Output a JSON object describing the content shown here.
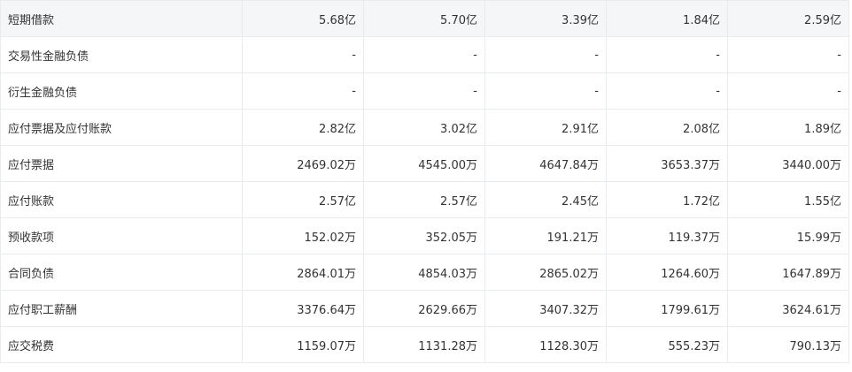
{
  "rows": [
    {
      "label": "短期借款",
      "values": [
        "5.68亿",
        "5.70亿",
        "3.39亿",
        "1.84亿",
        "2.59亿"
      ]
    },
    {
      "label": "交易性金融负债",
      "values": [
        "-",
        "-",
        "-",
        "-",
        "-"
      ]
    },
    {
      "label": "衍生金融负债",
      "values": [
        "-",
        "-",
        "-",
        "-",
        "-"
      ]
    },
    {
      "label": "应付票据及应付账款",
      "values": [
        "2.82亿",
        "3.02亿",
        "2.91亿",
        "2.08亿",
        "1.89亿"
      ]
    },
    {
      "label": "应付票据",
      "values": [
        "2469.02万",
        "4545.00万",
        "4647.84万",
        "3653.37万",
        "3440.00万"
      ]
    },
    {
      "label": "应付账款",
      "values": [
        "2.57亿",
        "2.57亿",
        "2.45亿",
        "1.72亿",
        "1.55亿"
      ]
    },
    {
      "label": "预收款项",
      "values": [
        "152.02万",
        "352.05万",
        "191.21万",
        "119.37万",
        "15.99万"
      ]
    },
    {
      "label": "合同负债",
      "values": [
        "2864.01万",
        "4854.03万",
        "2865.02万",
        "1264.60万",
        "1647.89万"
      ]
    },
    {
      "label": "应付职工薪酬",
      "values": [
        "3376.64万",
        "2629.66万",
        "3407.32万",
        "1799.61万",
        "3624.61万"
      ]
    },
    {
      "label": "应交税费",
      "values": [
        "1159.07万",
        "1131.28万",
        "1128.30万",
        "555.23万",
        "790.13万"
      ]
    }
  ]
}
